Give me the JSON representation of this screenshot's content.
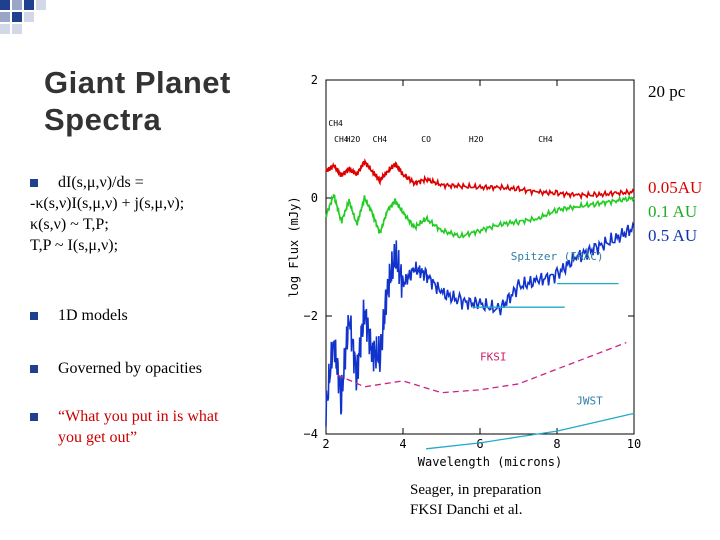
{
  "slide": {
    "title_line1": "Giant Planet",
    "title_line2": "Spectra"
  },
  "bullets": {
    "eq_line1": "dI(s,μ,ν)/ds =",
    "eq_line2": "-κ(s,ν)I(s,μ,ν) + j(s,μ,ν);",
    "eq_line3": "κ(s,ν) ~ T,P;",
    "eq_line4": "T,P ~ I(s,μ,ν);",
    "item2": "1D models",
    "item3": "Governed by opacities",
    "item4_line1": "“What you put in is what",
    "item4_line2": "you get out”"
  },
  "annotations": {
    "distance": "20 pc",
    "orbit_1": "0.05AU",
    "orbit_2": "0.1 AU",
    "orbit_3": "0.5 AU",
    "credit_1": "Seager, in preparation",
    "credit_2": "FKSI Danchi et al."
  },
  "chart_data": {
    "type": "line",
    "xlabel": "Wavelength (microns)",
    "ylabel": "log Flux (mJy)",
    "xlim": [
      2,
      10
    ],
    "ylim": [
      -4,
      2
    ],
    "x_ticks": [
      "2",
      "4",
      "6",
      "8",
      "10"
    ],
    "y_ticks": [
      "2",
      "0",
      "−2",
      "−4"
    ],
    "molecule_labels": [
      {
        "text": "CH4",
        "x": 2.25
      },
      {
        "text": "CH4",
        "x": 2.4
      },
      {
        "text": "H2O",
        "x": 2.7
      },
      {
        "text": "CH4",
        "x": 3.4
      },
      {
        "text": "CO",
        "x": 4.6
      },
      {
        "text": "H2O",
        "x": 5.9
      },
      {
        "text": "CH4",
        "x": 7.7
      }
    ],
    "instrument_labels": [
      {
        "text": "Spitzer (IRAC)",
        "x": 6.8,
        "y": -1.05,
        "color": "#2e7ea3"
      },
      {
        "text": "FKSI",
        "x": 6.0,
        "y": -2.75,
        "color": "#cc2266"
      },
      {
        "text": "JWST",
        "x": 8.5,
        "y": -3.5,
        "color": "#2e7ea3"
      }
    ],
    "series": [
      {
        "color": "#dd0000",
        "x": [
          2.0,
          2.2,
          2.4,
          2.6,
          2.8,
          3.0,
          3.2,
          3.4,
          3.6,
          3.8,
          4.0,
          4.3,
          4.6,
          5.0,
          5.5,
          6.0,
          6.5,
          7.0,
          7.5,
          8.0,
          8.5,
          9.0,
          9.5,
          10.0
        ],
        "values": [
          0.45,
          0.55,
          0.38,
          0.5,
          0.4,
          0.62,
          0.45,
          0.3,
          0.45,
          0.58,
          0.4,
          0.25,
          0.32,
          0.22,
          0.2,
          0.18,
          0.18,
          0.15,
          0.1,
          0.08,
          0.05,
          0.05,
          0.08,
          0.1
        ]
      },
      {
        "color": "#22cc22",
        "x": [
          2.0,
          2.2,
          2.4,
          2.6,
          2.8,
          3.0,
          3.2,
          3.4,
          3.6,
          3.8,
          4.0,
          4.3,
          4.6,
          5.0,
          5.5,
          6.0,
          6.5,
          7.0,
          7.5,
          8.0,
          8.5,
          9.0,
          9.5,
          10.0
        ],
        "values": [
          -0.3,
          0.05,
          -0.4,
          -0.05,
          -0.45,
          0.0,
          -0.25,
          -0.6,
          -0.2,
          -0.05,
          -0.25,
          -0.5,
          -0.35,
          -0.55,
          -0.65,
          -0.55,
          -0.45,
          -0.4,
          -0.35,
          -0.2,
          -0.15,
          -0.1,
          -0.05,
          0.0
        ]
      },
      {
        "color": "#1133cc",
        "x": [
          2.0,
          2.2,
          2.4,
          2.6,
          2.8,
          3.0,
          3.2,
          3.4,
          3.6,
          3.8,
          4.0,
          4.3,
          4.6,
          5.0,
          5.5,
          6.0,
          6.5,
          7.0,
          7.5,
          8.0,
          8.5,
          9.0,
          9.5,
          10.0
        ],
        "values": [
          -3.6,
          -2.4,
          -3.4,
          -2.0,
          -3.0,
          -1.9,
          -2.6,
          -2.7,
          -1.5,
          -1.0,
          -1.45,
          -1.2,
          -1.3,
          -1.6,
          -1.75,
          -1.8,
          -1.9,
          -1.5,
          -1.4,
          -1.3,
          -1.0,
          -0.85,
          -0.7,
          -0.5
        ]
      },
      {
        "color": "#22aacc",
        "dash": "none",
        "x": [
          5.8,
          8.2
        ],
        "values": [
          -1.85,
          -1.85
        ]
      },
      {
        "color": "#22aacc",
        "dash": "none",
        "x": [
          8.0,
          9.6
        ],
        "values": [
          -1.45,
          -1.45
        ]
      },
      {
        "color": "#cc2288",
        "dash": "6,4",
        "x": [
          2.3,
          3.0,
          4.0,
          5.0,
          6.0,
          7.0,
          8.0,
          9.0,
          9.8
        ],
        "values": [
          -3.0,
          -3.2,
          -3.1,
          -3.3,
          -3.25,
          -3.15,
          -2.9,
          -2.65,
          -2.45
        ]
      },
      {
        "color": "#22aacc",
        "dash": "none",
        "x": [
          4.6,
          6.0,
          7.0,
          8.0,
          9.0,
          10.0
        ],
        "values": [
          -4.25,
          -4.15,
          -4.05,
          -3.95,
          -3.8,
          -3.65
        ]
      }
    ]
  }
}
